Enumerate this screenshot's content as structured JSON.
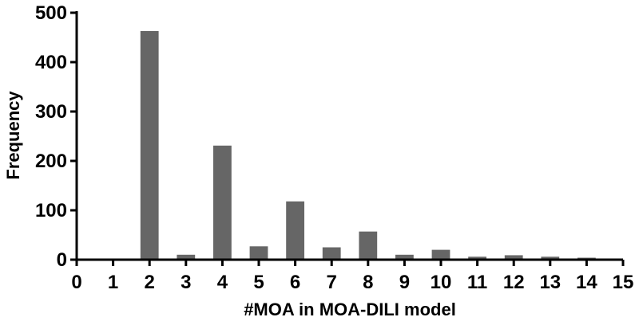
{
  "chart_data": {
    "type": "bar",
    "xlabel": "#MOA in MOA-DILI model",
    "ylabel": "Frequency",
    "x_ticks": [
      "0",
      "1",
      "2",
      "3",
      "4",
      "5",
      "6",
      "7",
      "8",
      "9",
      "10",
      "11",
      "12",
      "13",
      "14",
      "15"
    ],
    "y_ticks": [
      "0",
      "100",
      "200",
      "300",
      "400",
      "500"
    ],
    "xlim": [
      0,
      15
    ],
    "ylim": [
      0,
      500
    ],
    "categories": [
      "1",
      "2",
      "3",
      "4",
      "5",
      "6",
      "7",
      "8",
      "9",
      "10",
      "11",
      "12",
      "13",
      "14"
    ],
    "values": [
      2,
      463,
      10,
      231,
      27,
      118,
      25,
      57,
      10,
      20,
      6,
      9,
      6,
      4
    ],
    "bar_color": "#666666",
    "grid": false,
    "legend": "none"
  }
}
